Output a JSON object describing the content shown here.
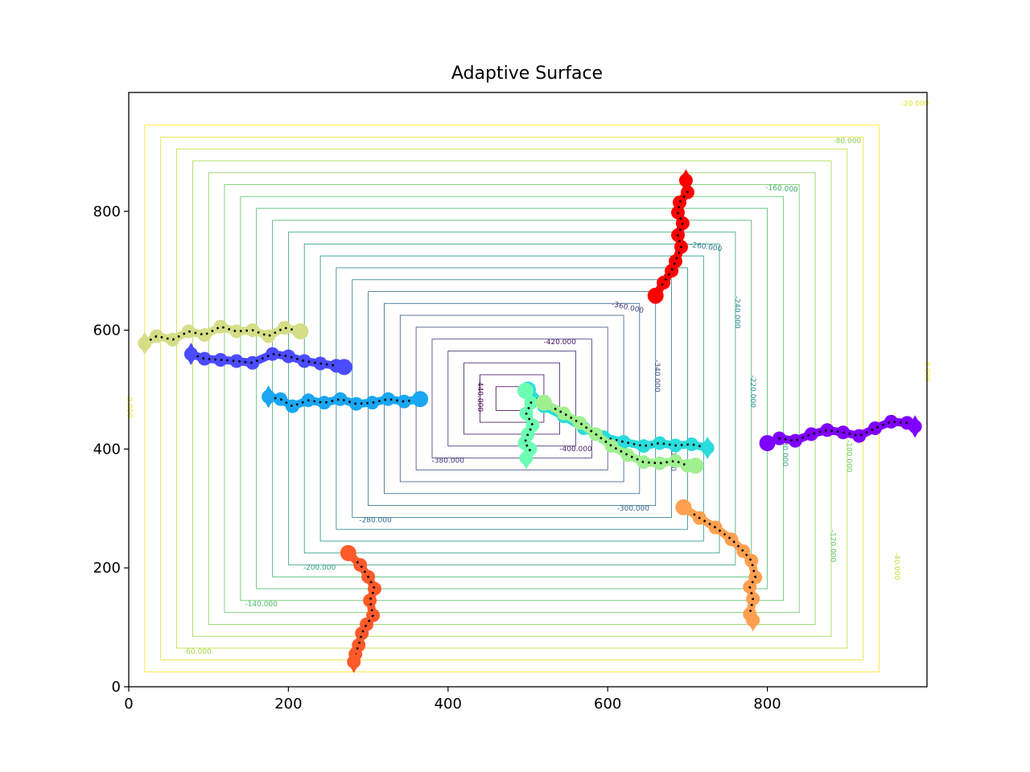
{
  "chart_data": {
    "type": "contour+line",
    "title": "Adaptive Surface",
    "xlabel": "",
    "ylabel": "",
    "xlim": [
      0,
      1000
    ],
    "ylim": [
      0,
      1000
    ],
    "xticks": [
      0,
      200,
      400,
      600,
      800
    ],
    "yticks": [
      0,
      200,
      400,
      600,
      800
    ],
    "grid": false,
    "contours": {
      "center": [
        480,
        485
      ],
      "max_value": -460,
      "levels": [
        -440,
        -420,
        -400,
        -380,
        -360,
        -340,
        -320,
        -300,
        -280,
        -260,
        -240,
        -220,
        -200,
        -180,
        -160,
        -140,
        -120,
        -100,
        -80,
        -60,
        -40,
        -20,
        0
      ],
      "labels": [
        {
          "text": "-20.000",
          "level": -20,
          "x": 985,
          "y": 981,
          "rot": 0
        },
        {
          "text": "-80.000",
          "level": -80,
          "x": 900,
          "y": 918,
          "rot": 0
        },
        {
          "text": "-160.000",
          "level": -160,
          "x": 818,
          "y": 838,
          "rot": 4
        },
        {
          "text": "-260.000",
          "level": -260,
          "x": 723,
          "y": 740,
          "rot": 8
        },
        {
          "text": "-360.000",
          "level": -360,
          "x": 625,
          "y": 638,
          "rot": 12
        },
        {
          "text": "-420.000",
          "level": -420,
          "x": 540,
          "y": 580,
          "rot": 0
        },
        {
          "text": "-440.000",
          "level": -440,
          "x": 440,
          "y": 490,
          "rot": 90
        },
        {
          "text": "-340.000",
          "level": -340,
          "x": 662,
          "y": 523,
          "rot": 90
        },
        {
          "text": "-240.000",
          "level": -240,
          "x": 762,
          "y": 630,
          "rot": 90
        },
        {
          "text": "-220.000",
          "level": -220,
          "x": 782,
          "y": 497,
          "rot": 90
        },
        {
          "text": "-320.000",
          "level": -320,
          "x": 682,
          "y": 390,
          "rot": 90
        },
        {
          "text": "-180.000",
          "level": -180,
          "x": 822,
          "y": 398,
          "rot": 90
        },
        {
          "text": "-100.000",
          "level": -100,
          "x": 902,
          "y": 388,
          "rot": 90
        },
        {
          "text": "-120.000",
          "level": -120,
          "x": 882,
          "y": 237,
          "rot": 90
        },
        {
          "text": "-40.000",
          "level": -40,
          "x": 962,
          "y": 203,
          "rot": 90
        },
        {
          "text": "-400.000",
          "level": -400,
          "x": 560,
          "y": 400,
          "rot": 0
        },
        {
          "text": "-380.000",
          "level": -380,
          "x": 400,
          "y": 380,
          "rot": 0
        },
        {
          "text": "-300.000",
          "level": -300,
          "x": 632,
          "y": 300,
          "rot": 0
        },
        {
          "text": "-280.000",
          "level": -280,
          "x": 309,
          "y": 280,
          "rot": 0
        },
        {
          "text": "-200.000",
          "level": -200,
          "x": 239,
          "y": 200,
          "rot": 0
        },
        {
          "text": "-140.000",
          "level": -140,
          "x": 166,
          "y": 139,
          "rot": 0
        },
        {
          "text": "-60.000",
          "level": -60,
          "x": 86,
          "y": 59,
          "rot": 0
        },
        {
          "text": "0.000",
          "level": 0,
          "x": 1,
          "y": 470,
          "rot": 90
        },
        {
          "text": "0.000",
          "level": 0,
          "x": 1000,
          "y": 530,
          "rot": 90
        }
      ]
    },
    "series": [
      {
        "color": "#7f00ff",
        "start_marker": "circle",
        "end_marker": "diamond",
        "x": [
          800,
          815,
          835,
          855,
          875,
          895,
          915,
          935,
          955,
          975,
          985
        ],
        "y": [
          410,
          418,
          414,
          425,
          432,
          428,
          422,
          435,
          446,
          444,
          438
        ]
      },
      {
        "color": "#4b4bff",
        "start_marker": "diamond",
        "end_marker": "circle",
        "x": [
          78,
          95,
          115,
          135,
          155,
          180,
          200,
          220,
          240,
          260,
          270
        ],
        "y": [
          560,
          552,
          550,
          548,
          545,
          560,
          556,
          548,
          544,
          540,
          538
        ]
      },
      {
        "color": "#1aa6f2",
        "start_marker": "diamond",
        "end_marker": "circle",
        "x": [
          175,
          190,
          205,
          225,
          245,
          265,
          285,
          305,
          325,
          345,
          365
        ],
        "y": [
          488,
          484,
          472,
          482,
          478,
          484,
          476,
          478,
          484,
          480,
          484
        ]
      },
      {
        "color": "#2adcdc",
        "start_marker": "circle",
        "end_marker": "diamond",
        "x": [
          500,
          520,
          545,
          570,
          595,
          620,
          645,
          665,
          685,
          705,
          725
        ],
        "y": [
          500,
          472,
          455,
          435,
          420,
          412,
          405,
          410,
          406,
          408,
          402
        ]
      },
      {
        "color": "#6cffb4",
        "start_marker": "circle",
        "end_marker": "diamond",
        "x": [
          497,
          504,
          498,
          506,
          500,
          496,
          503,
          498
        ],
        "y": [
          498,
          478,
          460,
          440,
          425,
          410,
          400,
          385
        ]
      },
      {
        "color": "#a0f090",
        "start_marker": "circle",
        "end_marker": "circle",
        "x": [
          520,
          545,
          565,
          585,
          605,
          625,
          645,
          665,
          685,
          700,
          710
        ],
        "y": [
          478,
          460,
          444,
          425,
          405,
          390,
          378,
          376,
          380,
          372,
          372
        ]
      },
      {
        "color": "#d4de86",
        "start_marker": "diamond",
        "end_marker": "circle",
        "x": [
          20,
          35,
          55,
          75,
          95,
          115,
          135,
          155,
          175,
          195,
          215
        ],
        "y": [
          578,
          590,
          584,
          598,
          592,
          606,
          598,
          600,
          590,
          604,
          598
        ]
      },
      {
        "color": "#ffa050",
        "start_marker": "circle",
        "end_marker": "diamond",
        "x": [
          695,
          715,
          735,
          755,
          770,
          780,
          785,
          778,
          782,
          778,
          782
        ],
        "y": [
          302,
          284,
          268,
          248,
          228,
          212,
          184,
          168,
          148,
          122,
          112
        ]
      },
      {
        "color": "#ff5a2a",
        "start_marker": "circle",
        "end_marker": "diamond",
        "x": [
          275,
          290,
          300,
          308,
          302,
          306,
          298,
          292,
          288,
          284,
          282
        ],
        "y": [
          225,
          205,
          185,
          165,
          145,
          120,
          105,
          90,
          70,
          55,
          42
        ]
      },
      {
        "color": "#ff0000",
        "start_marker": "circle",
        "end_marker": "diamond",
        "x": [
          660,
          670,
          680,
          685,
          692,
          688,
          694,
          688,
          690,
          700,
          698
        ],
        "y": [
          658,
          680,
          700,
          716,
          740,
          760,
          780,
          798,
          815,
          832,
          852
        ]
      }
    ]
  }
}
